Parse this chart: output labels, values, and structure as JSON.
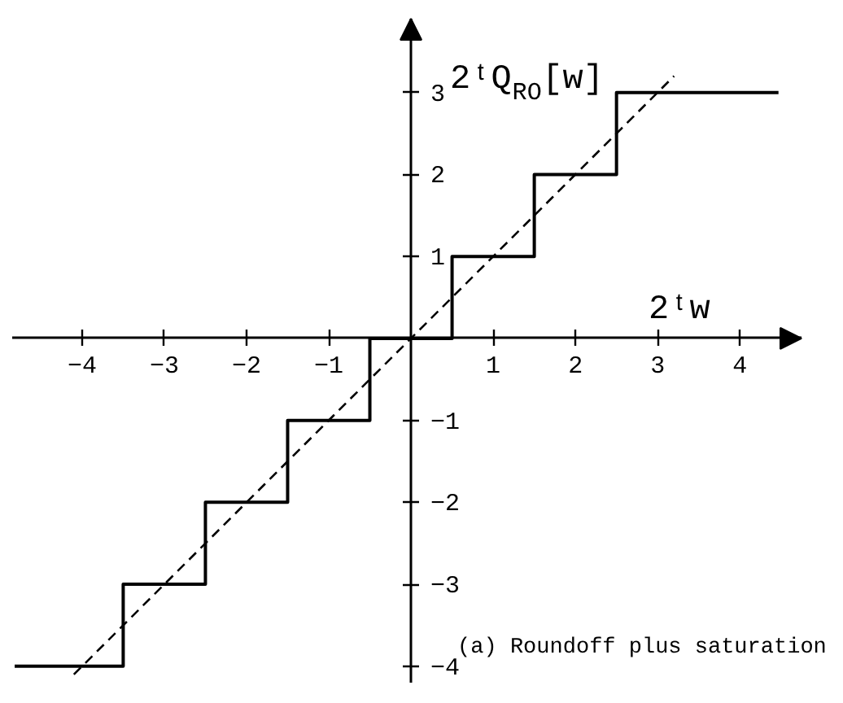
{
  "chart_data": {
    "type": "step",
    "xlabel": "2ᵗw",
    "ylabel": "2ᵗQ$_{RO}$[w]",
    "annotations": [
      "(a) Roundoff plus saturation"
    ],
    "xlim": [
      -4.85,
      4.75
    ],
    "ylim": [
      -4.2,
      3.9
    ],
    "xticks": [
      -4,
      -3,
      -2,
      -1,
      1,
      2,
      3,
      4
    ],
    "yticks": [
      -4,
      -3,
      -2,
      -1,
      1,
      2,
      3
    ],
    "grid": false,
    "series": [
      {
        "color": "#000000",
        "x": [
          -4.82,
          -3.5,
          -2.5,
          -1.5,
          -0.5,
          0.5,
          1.5,
          2.5,
          4.47
        ],
        "values": [
          -4,
          -3,
          -2,
          -1,
          0,
          1,
          2,
          3,
          3
        ]
      },
      {
        "type": "line",
        "line_style": "dashed",
        "color": "#000000",
        "x": [
          -4.1,
          3.2
        ],
        "values": [
          -4.1,
          3.2
        ]
      }
    ]
  }
}
